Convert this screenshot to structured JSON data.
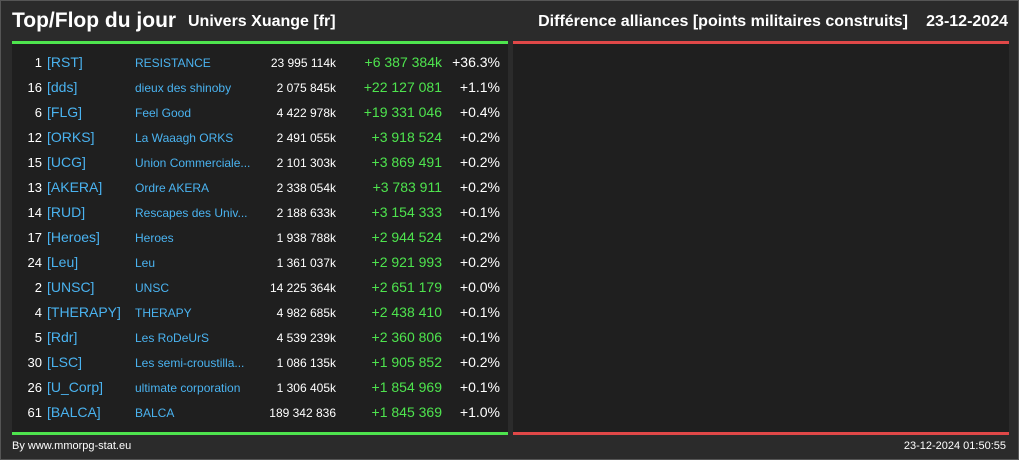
{
  "header": {
    "title": "Top/Flop du jour",
    "universe": "Univers Xuange [fr]",
    "subtitle": "Différence alliances [points militaires construits]",
    "date": "23-12-2024"
  },
  "colors": {
    "background": "#2b2b2b",
    "panel": "#1f1f1f",
    "top_accent": "#4ee44e",
    "flop_accent": "#e04848",
    "link": "#4ab3f0",
    "positive": "#4ee44e"
  },
  "top_rows": [
    {
      "rank": "1",
      "tag": "[RST]",
      "name": "RESISTANCE",
      "points": "23 995 114k",
      "diff": "+6 387 384k",
      "pct": "+36.3%"
    },
    {
      "rank": "16",
      "tag": "[dds]",
      "name": "dieux des shinoby",
      "points": "2 075 845k",
      "diff": "+22 127 081",
      "pct": "+1.1%"
    },
    {
      "rank": "6",
      "tag": "[FLG]",
      "name": "Feel Good",
      "points": "4 422 978k",
      "diff": "+19 331 046",
      "pct": "+0.4%"
    },
    {
      "rank": "12",
      "tag": "[ORKS]",
      "name": "La Waaagh ORKS",
      "points": "2 491 055k",
      "diff": "+3 918 524",
      "pct": "+0.2%"
    },
    {
      "rank": "15",
      "tag": "[UCG]",
      "name": "Union Commerciale...",
      "points": "2 101 303k",
      "diff": "+3 869 491",
      "pct": "+0.2%"
    },
    {
      "rank": "13",
      "tag": "[AKERA]",
      "name": "Ordre AKERA",
      "points": "2 338 054k",
      "diff": "+3 783 911",
      "pct": "+0.2%"
    },
    {
      "rank": "14",
      "tag": "[RUD]",
      "name": "Rescapes des Univ...",
      "points": "2 188 633k",
      "diff": "+3 154 333",
      "pct": "+0.1%"
    },
    {
      "rank": "17",
      "tag": "[Heroes]",
      "name": "Heroes",
      "points": "1 938 788k",
      "diff": "+2 944 524",
      "pct": "+0.2%"
    },
    {
      "rank": "24",
      "tag": "[Leu]",
      "name": "Leu",
      "points": "1 361 037k",
      "diff": "+2 921 993",
      "pct": "+0.2%"
    },
    {
      "rank": "2",
      "tag": "[UNSC]",
      "name": "UNSC",
      "points": "14 225 364k",
      "diff": "+2 651 179",
      "pct": "+0.0%"
    },
    {
      "rank": "4",
      "tag": "[THERAPY]",
      "name": "THERAPY",
      "points": "4 982 685k",
      "diff": "+2 438 410",
      "pct": "+0.1%"
    },
    {
      "rank": "5",
      "tag": "[Rdr]",
      "name": "Les RoDeUrS",
      "points": "4 539 239k",
      "diff": "+2 360 806",
      "pct": "+0.1%"
    },
    {
      "rank": "30",
      "tag": "[LSC]",
      "name": "Les semi-croustilla...",
      "points": "1 086 135k",
      "diff": "+1 905 852",
      "pct": "+0.2%"
    },
    {
      "rank": "26",
      "tag": "[U_Corp]",
      "name": "ultimate corporation",
      "points": "1 306 405k",
      "diff": "+1 854 969",
      "pct": "+0.1%"
    },
    {
      "rank": "61",
      "tag": "[BALCA]",
      "name": "BALCA",
      "points": "189 342 836",
      "diff": "+1 845 369",
      "pct": "+1.0%"
    }
  ],
  "footer": {
    "source": "By www.mmorpg-stat.eu",
    "timestamp": "23-12-2024 01:50:55"
  }
}
